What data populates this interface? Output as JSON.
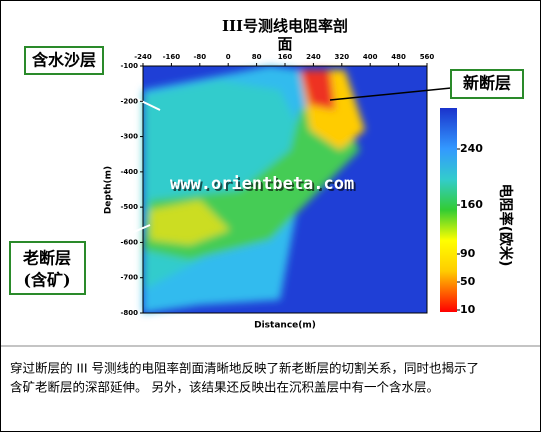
{
  "figure": {
    "title_lines": [
      "III号测线电阻率剖",
      "面"
    ],
    "x_axis": {
      "label": "Distance(m)",
      "ticks": [
        -240,
        -160,
        -80,
        0,
        80,
        160,
        240,
        320,
        400,
        480,
        560
      ]
    },
    "y_axis": {
      "label": "Depth(m)",
      "ticks": [
        -100,
        -200,
        -300,
        -400,
        -500,
        -600,
        -700,
        -800
      ]
    },
    "colorbar": {
      "label": "电阻率(欧米)",
      "ticks": [
        240,
        160,
        90,
        50,
        10
      ]
    },
    "callouts": {
      "aquifer": "含水沙层",
      "new_fault": "新断层",
      "old_fault": [
        "老断层",
        "(含矿)"
      ]
    },
    "watermark": "www.orientbeta.com"
  },
  "caption": [
    "穿过断层的 III 号测线的电阻率剖面清晰地反映了新老断层的切割关系，同时也揭示了",
    "含矿老断层的深部延伸。  另外，该结果还反映出在沉积盖层中有一个含水层。"
  ]
}
